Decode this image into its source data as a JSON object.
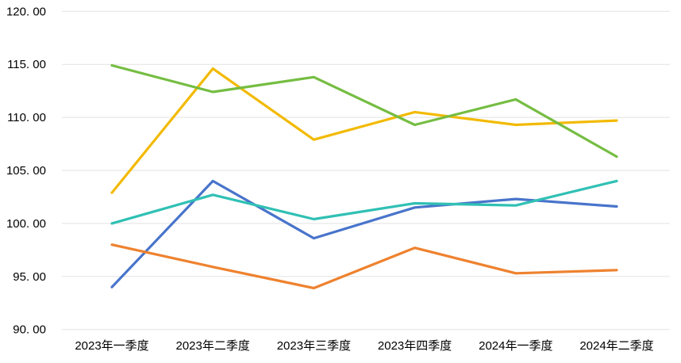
{
  "chart": {
    "title": "",
    "legend": "none",
    "background_color": "#FFFFFF",
    "gridline_color": "#E2E2E2",
    "text_color": "#000000"
  },
  "chart_data": {
    "type": "line",
    "title": "",
    "xlabel": "",
    "ylabel": "",
    "categories": [
      "2023年一季度",
      "2023年二季度",
      "2023年三季度",
      "2023年四季度",
      "2024年一季度",
      "2024年二季度"
    ],
    "series": [
      {
        "name": "blue",
        "color": "#4874CB",
        "values": [
          94.0,
          104.0,
          98.6,
          101.5,
          102.3,
          101.6
        ]
      },
      {
        "name": "orange",
        "color": "#EE822F",
        "values": [
          98.0,
          95.9,
          93.9,
          97.7,
          95.3,
          95.6
        ]
      },
      {
        "name": "yellow",
        "color": "#F2BA02",
        "values": [
          102.9,
          114.6,
          107.9,
          110.5,
          109.3,
          109.7
        ]
      },
      {
        "name": "green",
        "color": "#75BD42",
        "values": [
          114.9,
          112.4,
          113.8,
          109.3,
          111.7,
          106.3
        ]
      },
      {
        "name": "teal",
        "color": "#30C0B4",
        "values": [
          100.0,
          102.7,
          100.4,
          101.9,
          101.7,
          104.0
        ]
      }
    ],
    "ylim": [
      90,
      120
    ],
    "ytick_step": 5,
    "ytick_labels": [
      "90. 00",
      "95. 00",
      "100. 00",
      "105. 00",
      "110. 00",
      "115. 00",
      "120. 00"
    ],
    "grid": true,
    "legend_position": "none"
  }
}
